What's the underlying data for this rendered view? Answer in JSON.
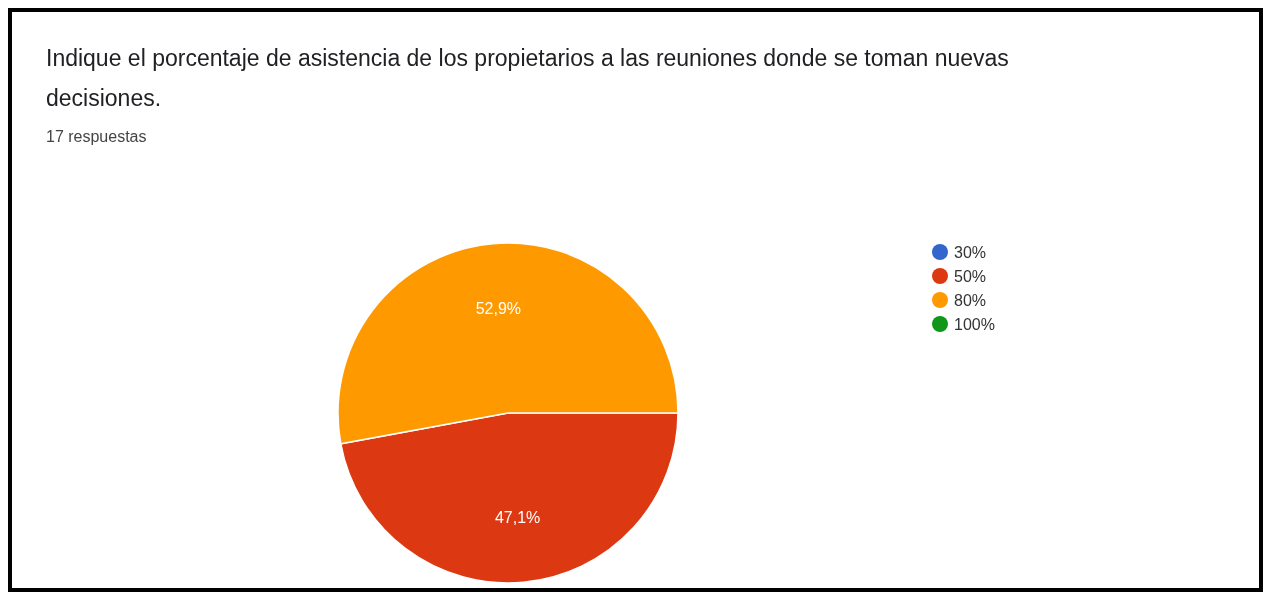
{
  "chart_data": {
    "type": "pie",
    "title": "Indique el porcentaje de asistencia de los propietarios a las reuniones donde se toman nuevas decisiones.",
    "subtitle": "17 respuestas",
    "categories": [
      "30%",
      "50%",
      "80%",
      "100%"
    ],
    "values": [
      0,
      47.1,
      52.9,
      0
    ],
    "colors": [
      "#3366cc",
      "#dc3912",
      "#ff9900",
      "#109618"
    ],
    "value_labels": [
      null,
      "47,1%",
      "52,9%",
      null
    ],
    "legend": "right"
  }
}
